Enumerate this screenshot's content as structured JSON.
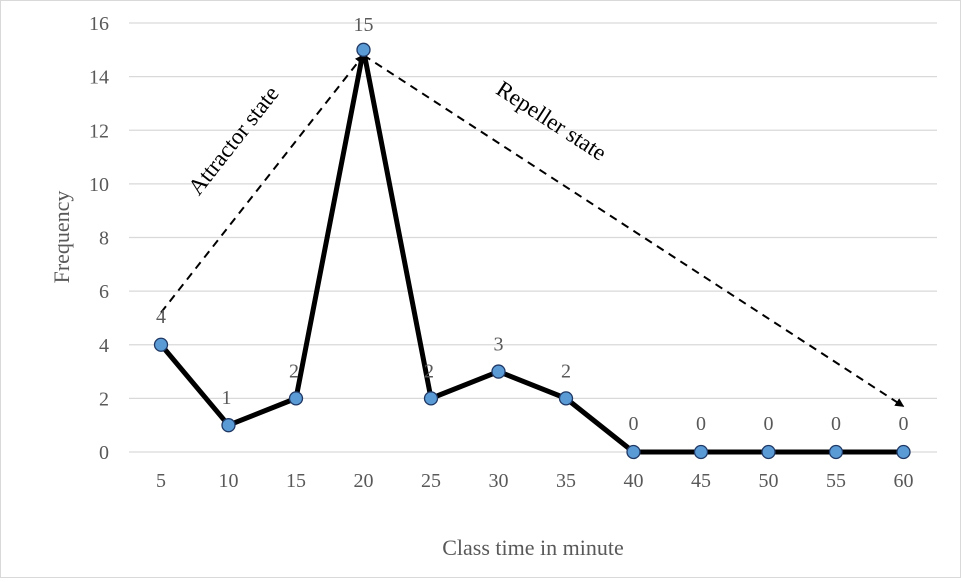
{
  "chart_data": {
    "type": "line",
    "xlabel": "Class time in minute",
    "ylabel": "Frequency",
    "x": [
      5,
      10,
      15,
      20,
      25,
      30,
      35,
      40,
      45,
      50,
      55,
      60
    ],
    "series": [
      {
        "values": [
          4,
          1,
          2,
          15,
          2,
          3,
          2,
          0,
          0,
          0,
          0,
          0
        ]
      }
    ],
    "data_labels": [
      "4",
      "1",
      "2",
      "15",
      "2",
      "3",
      "2",
      "0",
      "0",
      "0",
      "0",
      "0"
    ],
    "ylim": [
      0,
      16
    ],
    "yticks": [
      0,
      2,
      4,
      6,
      8,
      10,
      12,
      14,
      16
    ],
    "xtick_labels": [
      "5",
      "10",
      "15",
      "20",
      "25",
      "30",
      "35",
      "40",
      "45",
      "50",
      "55",
      "60"
    ],
    "grid": "horizontal",
    "colors": {
      "line": "#000000",
      "marker_fill": "#5b9bd5",
      "marker_edge": "#1f3864",
      "grid": "#d9d9d9",
      "text": "#595959"
    },
    "annotations": [
      {
        "text": "Attractor state",
        "arrow": "dashed",
        "from": {
          "x": 5,
          "y": 5.2
        },
        "to": {
          "x": 20,
          "y": 14.8
        }
      },
      {
        "text": "Repeller state",
        "arrow": "dashed",
        "from": {
          "x": 20,
          "y": 14.8
        },
        "to": {
          "x": 60,
          "y": 1.7
        }
      }
    ]
  }
}
